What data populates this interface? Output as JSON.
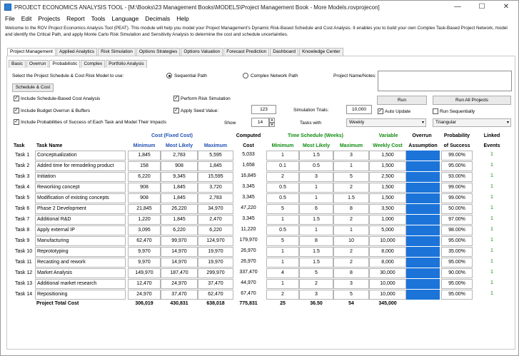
{
  "window": {
    "title": "PROJECT ECONOMICS ANALYSIS TOOL - [M:\\Books\\23 Management Books\\MODELS\\Project Management Book - More Models.rovprojecon]",
    "min": "—",
    "max": "☐",
    "close": "✕"
  },
  "menu": [
    "File",
    "Edit",
    "Projects",
    "Report",
    "Tools",
    "Language",
    "Decimals",
    "Help"
  ],
  "intro": "Welcome to the ROV Project Economics Analysis Tool (PEAT). This module will help you model your Project Management's Dynamic Risk-Based Schedule and Cost Analysis. It enables you to build your own Complex Task-Based Project Network, model and identify the Critical Path, and apply Monte Carlo Risk Simulation and Sensitivity Analysis to determine the cost and schedule uncertainties.",
  "tabs": [
    "Project Management",
    "Applied Analytics",
    "Risk Simulation",
    "Options Strategies",
    "Options Valuation",
    "Forecast Prediction",
    "Dashboard",
    "Knowledge Center"
  ],
  "subtabs": [
    "Basic",
    "Overrun",
    "Probabilistic",
    "Complex",
    "Portfolio Analysis"
  ],
  "controls": {
    "model_label": "Select the Project Schedule & Cost Risk Model to use:",
    "sequential": "Sequential Path",
    "complex": "Complex Network Path",
    "name_label": "Project Name/Notes:",
    "schedule_btn": "Schedule & Cost",
    "c1": "Include Schedule-Based Cost Analysis",
    "c2": "Include Budget Overrun & Buffers",
    "c3": "Include Probabilities of Success of Each Task and Model Their Impacts",
    "c4": "Perform Risk Simulation",
    "c5": "Apply Seed Value:",
    "seed": "123",
    "trials_label": "Simulation Trials:",
    "trials": "10,000",
    "show_label": "Show",
    "show": "14",
    "tasks_with": "Tasks with",
    "weekly": "Weekly",
    "triangular": "Triangular",
    "run": "Run",
    "run_all": "Run All Projects",
    "auto": "Auto Update",
    "seq": "Run Sequentially"
  },
  "headers": {
    "task": "Task",
    "task_name": "Task Name",
    "cost_group": "Cost (Fixed Cost)",
    "min": "Minimum",
    "ml": "Most Likely",
    "max": "Maximum",
    "computed1": "Computed",
    "computed2": "Cost",
    "time_group": "Time Schedule (Weeks)",
    "variable1": "Variable",
    "variable2": "Weekly Cost",
    "overrun1": "Overrun",
    "overrun2": "Assumption",
    "prob1": "Probability",
    "prob2": "of Success",
    "linked1": "Linked",
    "linked2": "Events"
  },
  "rows": [
    {
      "task": "Task 1",
      "name": "Conceptualization",
      "cmin": "1,845",
      "cml": "2,783",
      "cmax": "5,595",
      "computed": "5,033",
      "tmin": "1",
      "tml": "1.5",
      "tmax": "3",
      "weekly": "1,500",
      "prob": "99.00%",
      "linked": "1"
    },
    {
      "task": "Task 2",
      "name": "Added time for remodeling product",
      "cmin": "158",
      "cml": "908",
      "cmax": "1,845",
      "computed": "1,658",
      "tmin": "0.1",
      "tml": "0.5",
      "tmax": "1",
      "weekly": "1,500",
      "prob": "95.00%",
      "linked": "1"
    },
    {
      "task": "Task 3",
      "name": "Initiation",
      "cmin": "6,220",
      "cml": "9,345",
      "cmax": "15,595",
      "computed": "16,845",
      "tmin": "2",
      "tml": "3",
      "tmax": "5",
      "weekly": "2,500",
      "prob": "93.00%",
      "linked": "1"
    },
    {
      "task": "Task 4",
      "name": "Reworking concept",
      "cmin": "908",
      "cml": "1,845",
      "cmax": "3,720",
      "computed": "3,345",
      "tmin": "0.5",
      "tml": "1",
      "tmax": "2",
      "weekly": "1,500",
      "prob": "99.00%",
      "linked": "1"
    },
    {
      "task": "Task 5",
      "name": "Modification of existing concepts",
      "cmin": "908",
      "cml": "1,845",
      "cmax": "2,783",
      "computed": "3,345",
      "tmin": "0.5",
      "tml": "1",
      "tmax": "1.5",
      "weekly": "1,500",
      "prob": "99.00%",
      "linked": "1"
    },
    {
      "task": "Task 6",
      "name": "Phase 2 Development",
      "cmin": "21,845",
      "cml": "26,220",
      "cmax": "34,970",
      "computed": "47,220",
      "tmin": "5",
      "tml": "6",
      "tmax": "8",
      "weekly": "3,500",
      "prob": "50.00%",
      "linked": "1"
    },
    {
      "task": "Task 7",
      "name": "Additional R&D",
      "cmin": "1,220",
      "cml": "1,845",
      "cmax": "2,470",
      "computed": "3,345",
      "tmin": "1",
      "tml": "1.5",
      "tmax": "2",
      "weekly": "1,000",
      "prob": "97.00%",
      "linked": "1"
    },
    {
      "task": "Task 8",
      "name": "Apply external IP",
      "cmin": "3,095",
      "cml": "6,220",
      "cmax": "6,220",
      "computed": "11,220",
      "tmin": "0.5",
      "tml": "1",
      "tmax": "1",
      "weekly": "5,000",
      "prob": "98.00%",
      "linked": "1"
    },
    {
      "task": "Task 9",
      "name": "Manufacturing",
      "cmin": "62,470",
      "cml": "99,970",
      "cmax": "124,970",
      "computed": "179,970",
      "tmin": "5",
      "tml": "8",
      "tmax": "10",
      "weekly": "10,000",
      "prob": "95.00%",
      "linked": "1"
    },
    {
      "task": "Task 10",
      "name": "Reprototyping",
      "cmin": "9,970",
      "cml": "14,970",
      "cmax": "19,970",
      "computed": "26,970",
      "tmin": "1",
      "tml": "1.5",
      "tmax": "2",
      "weekly": "8,000",
      "prob": "35.00%",
      "linked": "1"
    },
    {
      "task": "Task 11",
      "name": "Recasting and rework",
      "cmin": "9,970",
      "cml": "14,970",
      "cmax": "19,970",
      "computed": "26,970",
      "tmin": "1",
      "tml": "1.5",
      "tmax": "2",
      "weekly": "8,000",
      "prob": "95.00%",
      "linked": "1"
    },
    {
      "task": "Task 12",
      "name": "Market Analysis",
      "cmin": "149,970",
      "cml": "187,470",
      "cmax": "299,970",
      "computed": "337,470",
      "tmin": "4",
      "tml": "5",
      "tmax": "8",
      "weekly": "30,000",
      "prob": "90.00%",
      "linked": "1"
    },
    {
      "task": "Task 13",
      "name": "Additional market research",
      "cmin": "12,470",
      "cml": "24,970",
      "cmax": "37,470",
      "computed": "44,970",
      "tmin": "1",
      "tml": "2",
      "tmax": "3",
      "weekly": "10,000",
      "prob": "95.00%",
      "linked": "1"
    },
    {
      "task": "Task 14",
      "name": "Repositioning",
      "cmin": "24,970",
      "cml": "37,470",
      "cmax": "62,470",
      "computed": "67,470",
      "tmin": "2",
      "tml": "3",
      "tmax": "5",
      "weekly": "10,000",
      "prob": "95.00%",
      "linked": "1"
    }
  ],
  "totals": {
    "label": "Project Total Cost",
    "cmin": "306,019",
    "cml": "430,831",
    "cmax": "638,018",
    "computed": "775,831",
    "tmin": "25",
    "tml": "36.50",
    "tmax": "54",
    "weekly": "345,000"
  },
  "colors": {
    "overrun": "#1c74d9",
    "blue_header": "#1f4fb4",
    "green_header": "#118b11"
  }
}
